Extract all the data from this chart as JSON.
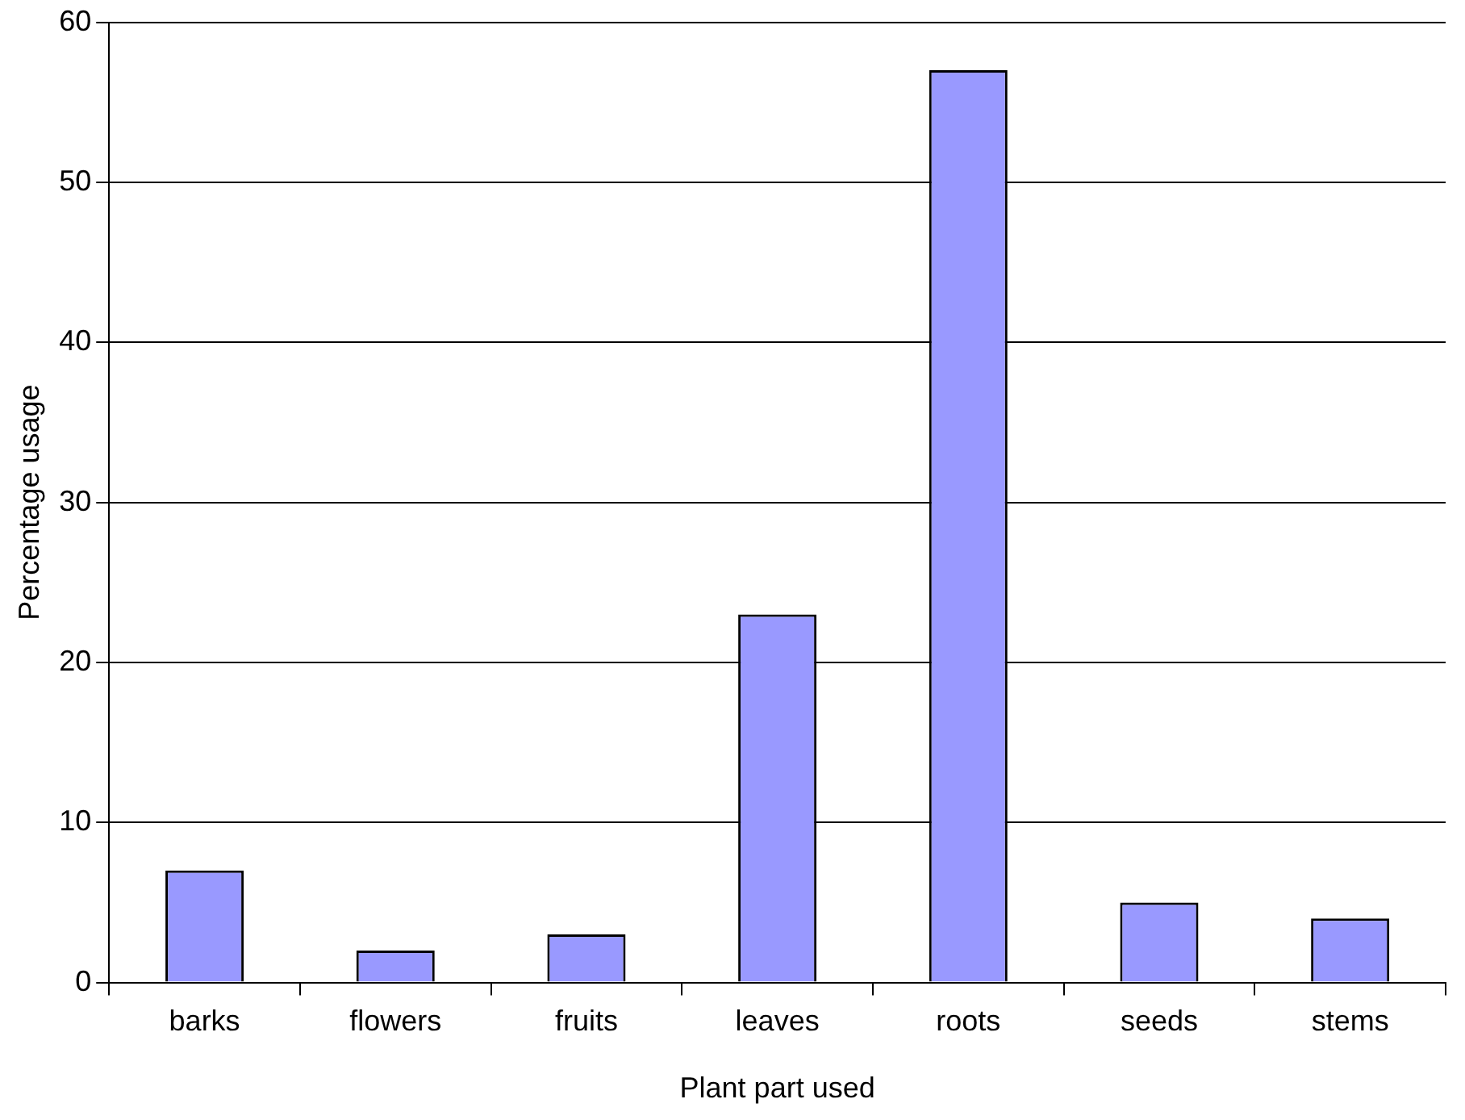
{
  "chart_data": {
    "type": "bar",
    "xlabel": "Plant part used",
    "ylabel": "Percentage usage",
    "categories": [
      "barks",
      "flowers",
      "fruits",
      "leaves",
      "roots",
      "seeds",
      "stems"
    ],
    "values": [
      7,
      2,
      3,
      23,
      57,
      5,
      4
    ],
    "color": "#9999ff",
    "ylim": [
      0,
      60
    ],
    "yticks": [
      0,
      10,
      20,
      30,
      40,
      50,
      60
    ],
    "grid": "y",
    "legend": false
  }
}
